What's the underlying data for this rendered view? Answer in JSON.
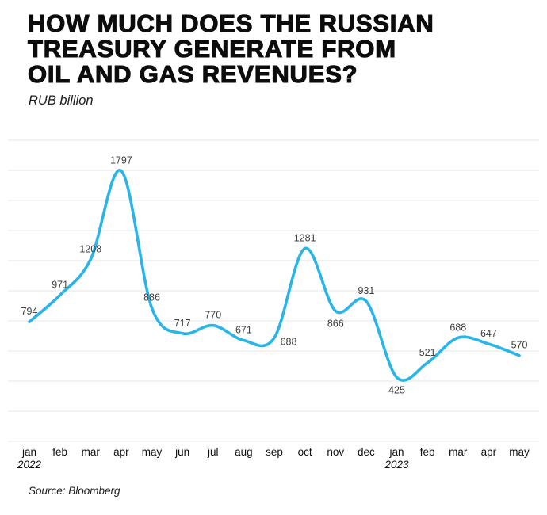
{
  "header": {
    "title_lines": [
      "HOW MUCH DOES THE RUSSIAN",
      "TREASURY GENERATE FROM",
      "OIL AND GAS REVENUES?"
    ],
    "subtitle": "RUB billion"
  },
  "footer": {
    "source": "Source: Bloomberg"
  },
  "chart_data": {
    "type": "line",
    "title": "HOW MUCH DOES THE RUSSIAN TREASURY GENERATE FROM OIL AND GAS REVENUES?",
    "subtitle": "RUB billion",
    "ylabel": "RUB billion",
    "source": "Source: Bloomberg",
    "categories": [
      "jan",
      "feb",
      "mar",
      "apr",
      "may",
      "jun",
      "jul",
      "aug",
      "sep",
      "oct",
      "nov",
      "dec",
      "jan",
      "feb",
      "mar",
      "apr",
      "may"
    ],
    "year_markers": [
      {
        "index": 0,
        "label": "2022"
      },
      {
        "index": 12,
        "label": "2023"
      }
    ],
    "values": [
      794,
      971,
      1208,
      1797,
      886,
      717,
      770,
      671,
      688,
      1281,
      866,
      931,
      425,
      521,
      688,
      647,
      570
    ],
    "label_placement": [
      "above",
      "above",
      "above",
      "above",
      "above",
      "above",
      "above",
      "above",
      "right-below",
      "above",
      "below",
      "above",
      "below",
      "above",
      "above",
      "above",
      "above"
    ],
    "ylim": [
      0,
      2000
    ],
    "grid_step": 200,
    "grid": true,
    "legend": false,
    "smooth": true,
    "line_color": "#29b5e8",
    "grid_color": "#e4e4e4",
    "label_color": "#3f3f3f"
  }
}
